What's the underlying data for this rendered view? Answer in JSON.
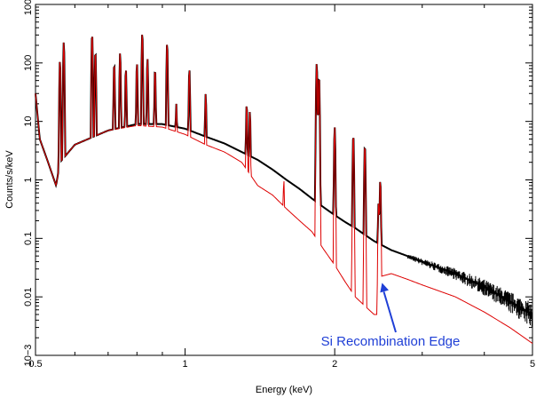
{
  "chart_data": {
    "type": "line",
    "title": "",
    "xlabel": "Energy (keV)",
    "ylabel": "Counts/s/keV",
    "x_scale": "log",
    "y_scale": "log",
    "xlim": [
      0.5,
      5
    ],
    "ylim": [
      0.001,
      1000
    ],
    "x_ticks": [
      {
        "value": 0.5,
        "label": "0.5"
      },
      {
        "value": 1,
        "label": "1"
      },
      {
        "value": 2,
        "label": "2"
      },
      {
        "value": 5,
        "label": "5"
      }
    ],
    "y_ticks": [
      {
        "value": 0.001,
        "label": "10−3"
      },
      {
        "value": 0.01,
        "label": "0.01"
      },
      {
        "value": 0.1,
        "label": "0.1"
      },
      {
        "value": 1,
        "label": "1"
      },
      {
        "value": 10,
        "label": "10"
      },
      {
        "value": 100,
        "label": "100"
      },
      {
        "value": 1000,
        "label": "1000"
      }
    ],
    "grid": false,
    "legend": "none",
    "series": [
      {
        "color": "#000000",
        "style": "data-points",
        "continuum": [
          [
            0.5,
            30
          ],
          [
            0.51,
            5
          ],
          [
            0.53,
            2
          ],
          [
            0.55,
            0.8
          ],
          [
            0.56,
            2
          ],
          [
            0.6,
            4
          ],
          [
            0.7,
            7
          ],
          [
            0.8,
            9
          ],
          [
            0.9,
            9
          ],
          [
            1.0,
            7.5
          ],
          [
            1.1,
            5.5
          ],
          [
            1.2,
            4.2
          ],
          [
            1.3,
            3
          ],
          [
            1.4,
            2.2
          ],
          [
            1.5,
            1.5
          ],
          [
            1.6,
            1.0
          ],
          [
            1.7,
            0.7
          ],
          [
            1.8,
            0.48
          ],
          [
            1.9,
            0.34
          ],
          [
            2.0,
            0.25
          ],
          [
            2.1,
            0.19
          ],
          [
            2.2,
            0.15
          ],
          [
            2.3,
            0.115
          ],
          [
            2.4,
            0.09
          ],
          [
            2.5,
            0.075
          ],
          [
            2.6,
            0.063
          ],
          [
            2.8,
            0.05
          ],
          [
            3.0,
            0.04
          ],
          [
            3.2,
            0.033
          ],
          [
            3.5,
            0.025
          ],
          [
            4.0,
            0.015
          ],
          [
            4.5,
            0.0085
          ],
          [
            5.0,
            0.005
          ]
        ],
        "lines": [
          [
            0.56,
            110
          ],
          [
            0.57,
            230
          ],
          [
            0.65,
            320
          ],
          [
            0.66,
            160
          ],
          [
            0.72,
            100
          ],
          [
            0.74,
            150
          ],
          [
            0.76,
            80
          ],
          [
            0.8,
            100
          ],
          [
            0.82,
            330
          ],
          [
            0.84,
            120
          ],
          [
            0.87,
            80
          ],
          [
            0.92,
            220
          ],
          [
            0.96,
            20
          ],
          [
            1.02,
            80
          ],
          [
            1.1,
            30
          ],
          [
            1.33,
            20
          ],
          [
            1.35,
            15
          ],
          [
            1.58,
            1.0
          ],
          [
            1.84,
            100
          ],
          [
            1.86,
            60
          ],
          [
            2.0,
            8
          ],
          [
            2.18,
            6
          ],
          [
            2.3,
            4
          ],
          [
            2.45,
            0.4
          ],
          [
            2.47,
            1.0
          ]
        ]
      },
      {
        "color": "#dd0000",
        "style": "line",
        "continuum": [
          [
            0.5,
            30
          ],
          [
            0.51,
            5
          ],
          [
            0.53,
            2
          ],
          [
            0.55,
            0.8
          ],
          [
            0.56,
            2
          ],
          [
            0.6,
            4
          ],
          [
            0.7,
            7
          ],
          [
            0.8,
            8.5
          ],
          [
            0.9,
            8
          ],
          [
            1.0,
            6
          ],
          [
            1.1,
            4
          ],
          [
            1.2,
            3
          ],
          [
            1.3,
            2
          ],
          [
            1.4,
            0.8
          ],
          [
            1.5,
            0.55
          ],
          [
            1.6,
            0.32
          ],
          [
            1.7,
            0.2
          ],
          [
            1.8,
            0.13
          ],
          [
            1.9,
            0.065
          ],
          [
            2.0,
            0.035
          ],
          [
            2.1,
            0.018
          ],
          [
            2.2,
            0.01
          ],
          [
            2.3,
            0.007
          ],
          [
            2.4,
            0.005
          ],
          [
            2.45,
            0.005
          ],
          [
            2.46,
            0.022
          ],
          [
            2.6,
            0.025
          ],
          [
            2.8,
            0.02
          ],
          [
            3.0,
            0.016
          ],
          [
            3.5,
            0.01
          ],
          [
            4.0,
            0.0055
          ],
          [
            4.5,
            0.003
          ],
          [
            5.0,
            0.0016
          ]
        ],
        "lines": [
          [
            0.56,
            110
          ],
          [
            0.57,
            230
          ],
          [
            0.65,
            320
          ],
          [
            0.66,
            160
          ],
          [
            0.72,
            100
          ],
          [
            0.74,
            150
          ],
          [
            0.76,
            80
          ],
          [
            0.8,
            100
          ],
          [
            0.82,
            330
          ],
          [
            0.84,
            120
          ],
          [
            0.87,
            80
          ],
          [
            0.92,
            220
          ],
          [
            0.96,
            20
          ],
          [
            1.02,
            80
          ],
          [
            1.1,
            30
          ],
          [
            1.33,
            20
          ],
          [
            1.35,
            15
          ],
          [
            1.58,
            1.0
          ],
          [
            1.84,
            100
          ],
          [
            1.86,
            60
          ],
          [
            2.0,
            8
          ],
          [
            2.18,
            6
          ],
          [
            2.3,
            4
          ],
          [
            2.45,
            0.4
          ],
          [
            2.47,
            1.0
          ]
        ]
      }
    ],
    "annotations": [
      {
        "text": "Si Recombination Edge",
        "x": 2.47,
        "y": 0.02,
        "color": "#1f3fd6",
        "arrow": true
      }
    ]
  }
}
